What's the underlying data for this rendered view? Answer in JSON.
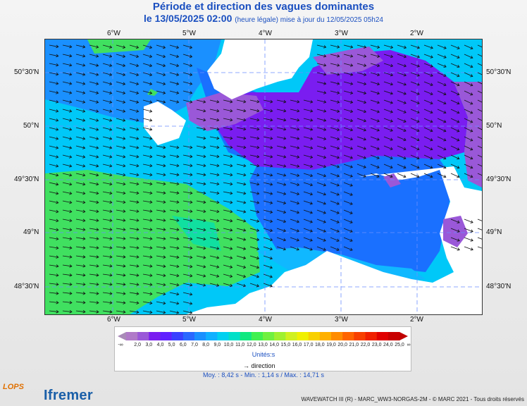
{
  "title": "Période et direction des vagues dominantes",
  "date_line": "le 13/05/2025 02:00",
  "update_note": "(heure légale) mise à jour du 12/05/2025 05h24",
  "top_ticks": [
    "6°W",
    "5°W",
    "4°W",
    "3°W",
    "2°W"
  ],
  "bottom_ticks": [
    "6°W",
    "5°W",
    "4°W",
    "3°W",
    "2°W"
  ],
  "left_ticks": [
    "50°30'N",
    "50°N",
    "49°30'N",
    "49°N",
    "48°30'N"
  ],
  "right_ticks": [
    "50°30'N",
    "50°N",
    "49°30'N",
    "49°N",
    "48°30'N"
  ],
  "colorbar": {
    "labels": [
      "2,0",
      "3,0",
      "4,0",
      "5,0",
      "6,0",
      "7,0",
      "8,0",
      "9,0",
      "10,0",
      "11,0",
      "12,0",
      "13,0",
      "14,0",
      "15,0",
      "16,0",
      "17,0",
      "18,0",
      "19,0",
      "20,0",
      "21,0",
      "22,0",
      "23,0",
      "24,0",
      "25,0"
    ],
    "colors": [
      "#b07ac8",
      "#9a58d8",
      "#7a1df0",
      "#6020ff",
      "#3a40ff",
      "#2a68ff",
      "#1a90ff",
      "#10b0ff",
      "#00d0f0",
      "#00e0c8",
      "#10e880",
      "#40f050",
      "#70f040",
      "#a0f030",
      "#d0f020",
      "#f0f000",
      "#f8d000",
      "#ffb000",
      "#ff8c00",
      "#ff6400",
      "#f84000",
      "#f02000",
      "#e00000",
      "#c80000"
    ],
    "low_label": "-∞",
    "high_label": "∞",
    "units": "Unités:s"
  },
  "legend_direction": "direction",
  "stats": "Moy. : 8,42 s   -   Min. : 1,14 s / Max. : 14,71 s",
  "credit": "WAVEWATCH III (R) - MARC_WW3-NORGAS-2M - © MARC 2021 - Tous droits réservés",
  "logos": {
    "lops": "LOPS",
    "ifremer": "Ifremer"
  }
}
